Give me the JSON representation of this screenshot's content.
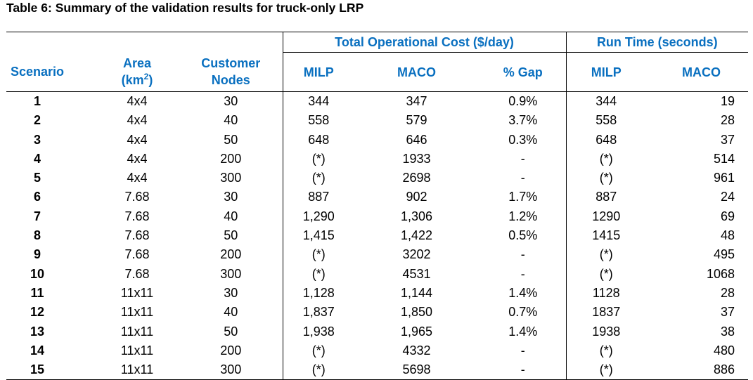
{
  "caption": "Table 6: Summary of the validation results for truck-only LRP",
  "header": {
    "group_cost": "Total Operational Cost ($/day)",
    "group_runtime": "Run Time (seconds)",
    "scenario": "Scenario",
    "area_line1": "Area",
    "area_line2_pre": "(km",
    "area_line2_sup": "2",
    "area_line2_post": ")",
    "nodes_line1": "Customer",
    "nodes_line2": "Nodes",
    "cost_milp": "MILP",
    "cost_maco": "MACO",
    "cost_gap": "% Gap",
    "rt_milp": "MILP",
    "rt_maco": "MACO"
  },
  "rows": [
    {
      "scenario": "1",
      "area": "4x4",
      "nodes": "30",
      "cost_milp": "344",
      "cost_maco": "347",
      "gap": "0.9%",
      "rt_milp": "344",
      "rt_maco": "19"
    },
    {
      "scenario": "2",
      "area": "4x4",
      "nodes": "40",
      "cost_milp": "558",
      "cost_maco": "579",
      "gap": "3.7%",
      "rt_milp": "558",
      "rt_maco": "28"
    },
    {
      "scenario": "3",
      "area": "4x4",
      "nodes": "50",
      "cost_milp": "648",
      "cost_maco": "646",
      "gap": "0.3%",
      "rt_milp": "648",
      "rt_maco": "37"
    },
    {
      "scenario": "4",
      "area": "4x4",
      "nodes": "200",
      "cost_milp": "(*)",
      "cost_maco": "1933",
      "gap": "-",
      "rt_milp": "(*)",
      "rt_maco": "514"
    },
    {
      "scenario": "5",
      "area": "4x4",
      "nodes": "300",
      "cost_milp": "(*)",
      "cost_maco": "2698",
      "gap": "-",
      "rt_milp": "(*)",
      "rt_maco": "961"
    },
    {
      "scenario": "6",
      "area": "7.68",
      "nodes": "30",
      "cost_milp": "887",
      "cost_maco": "902",
      "gap": "1.7%",
      "rt_milp": "887",
      "rt_maco": "24"
    },
    {
      "scenario": "7",
      "area": "7.68",
      "nodes": "40",
      "cost_milp": "1,290",
      "cost_maco": "1,306",
      "gap": "1.2%",
      "rt_milp": "1290",
      "rt_maco": "69"
    },
    {
      "scenario": "8",
      "area": "7.68",
      "nodes": "50",
      "cost_milp": "1,415",
      "cost_maco": "1,422",
      "gap": "0.5%",
      "rt_milp": "1415",
      "rt_maco": "48"
    },
    {
      "scenario": "9",
      "area": "7.68",
      "nodes": "200",
      "cost_milp": "(*)",
      "cost_maco": "3202",
      "gap": "-",
      "rt_milp": "(*)",
      "rt_maco": "495"
    },
    {
      "scenario": "10",
      "area": "7.68",
      "nodes": "300",
      "cost_milp": "(*)",
      "cost_maco": "4531",
      "gap": "-",
      "rt_milp": "(*)",
      "rt_maco": "1068"
    },
    {
      "scenario": "11",
      "area": "11x11",
      "nodes": "30",
      "cost_milp": "1,128",
      "cost_maco": "1,144",
      "gap": "1.4%",
      "rt_milp": "1128",
      "rt_maco": "28"
    },
    {
      "scenario": "12",
      "area": "11x11",
      "nodes": "40",
      "cost_milp": "1,837",
      "cost_maco": "1,850",
      "gap": "0.7%",
      "rt_milp": "1837",
      "rt_maco": "37"
    },
    {
      "scenario": "13",
      "area": "11x11",
      "nodes": "50",
      "cost_milp": "1,938",
      "cost_maco": "1,965",
      "gap": "1.4%",
      "rt_milp": "1938",
      "rt_maco": "38"
    },
    {
      "scenario": "14",
      "area": "11x11",
      "nodes": "200",
      "cost_milp": "(*)",
      "cost_maco": "4332",
      "gap": "-",
      "rt_milp": "(*)",
      "rt_maco": "480"
    },
    {
      "scenario": "15",
      "area": "11x11",
      "nodes": "300",
      "cost_milp": "(*)",
      "cost_maco": "5698",
      "gap": "-",
      "rt_milp": "(*)",
      "rt_maco": "886"
    }
  ]
}
